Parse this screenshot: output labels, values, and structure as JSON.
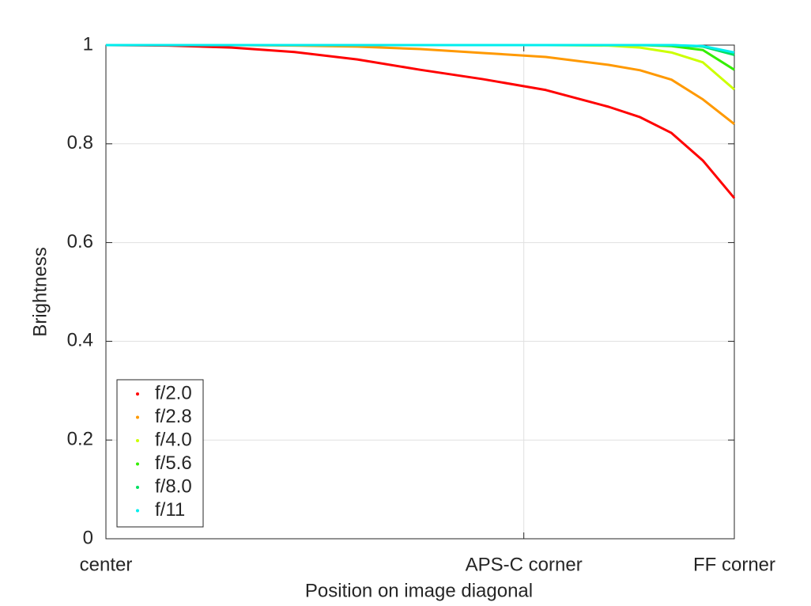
{
  "chart_data": {
    "type": "line",
    "xlabel": "Position on image diagonal",
    "ylabel": "Brightness",
    "x": [
      0,
      0.1,
      0.2,
      0.3,
      0.4,
      0.5,
      0.6,
      0.7,
      0.8,
      0.85,
      0.9,
      0.95,
      1.0
    ],
    "series": [
      {
        "name": "f/2.0",
        "color": "#ff0000",
        "values": [
          1,
          0.999,
          0.995,
          0.986,
          0.971,
          0.95,
          0.931,
          0.909,
          0.875,
          0.854,
          0.822,
          0.766,
          0.69
        ]
      },
      {
        "name": "f/2.8",
        "color": "#ff9900",
        "values": [
          1,
          1,
          1,
          0.999,
          0.997,
          0.992,
          0.984,
          0.976,
          0.96,
          0.949,
          0.93,
          0.89,
          0.84
        ]
      },
      {
        "name": "f/4.0",
        "color": "#ccff00",
        "values": [
          1,
          1,
          1,
          1,
          1,
          1,
          1,
          1,
          0.999,
          0.995,
          0.985,
          0.965,
          0.91
        ]
      },
      {
        "name": "f/5.6",
        "color": "#33ee00",
        "values": [
          1,
          1,
          1,
          1,
          1,
          1,
          1,
          1,
          1,
          1,
          0.998,
          0.99,
          0.95
        ]
      },
      {
        "name": "f/8.0",
        "color": "#00e060",
        "values": [
          1,
          1,
          1,
          1,
          1,
          1,
          1,
          1,
          1,
          1,
          1,
          0.997,
          0.98
        ]
      },
      {
        "name": "f/11",
        "color": "#00eeee",
        "values": [
          1,
          1,
          1,
          1,
          1,
          1,
          1,
          1,
          1,
          1,
          1,
          0.998,
          0.985
        ]
      }
    ],
    "xlim": [
      0,
      1
    ],
    "xticks": [
      {
        "value": 0,
        "label": "center"
      },
      {
        "value": 0.665,
        "label": "APS-C corner"
      },
      {
        "value": 1,
        "label": "FF corner"
      }
    ],
    "ylim": [
      0,
      1
    ],
    "yticks": [
      0,
      0.2,
      0.4,
      0.6,
      0.8,
      1
    ],
    "grid": true,
    "legend": "lower-left"
  }
}
